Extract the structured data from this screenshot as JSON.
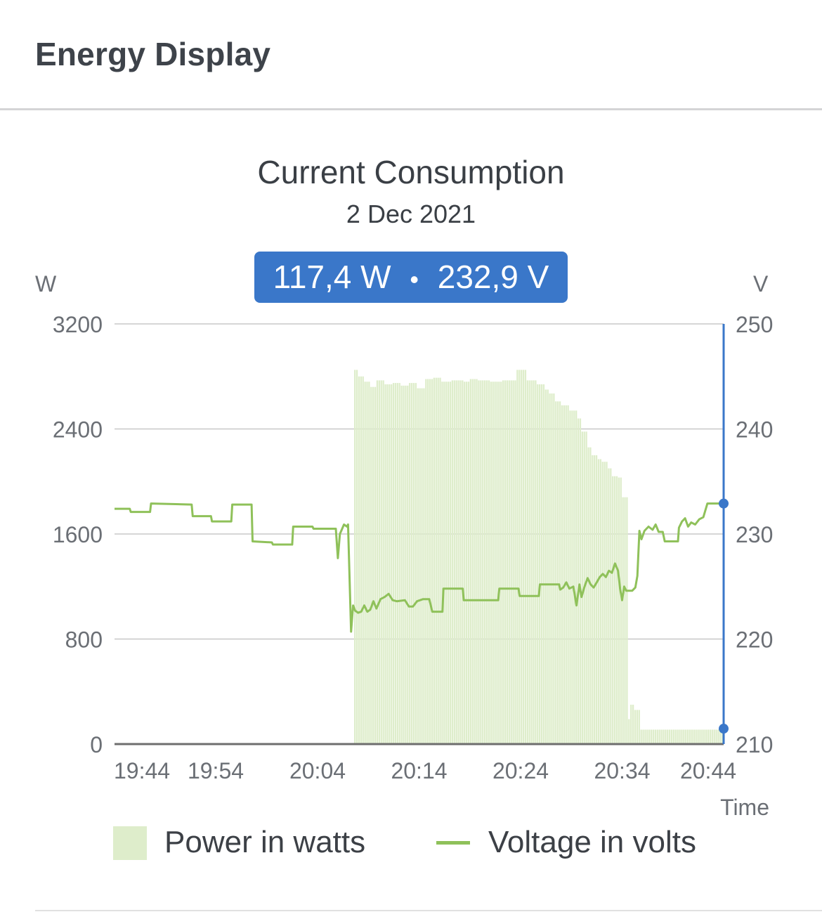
{
  "header": {
    "title": "Energy Display"
  },
  "tooltip": {
    "power": "117,4 W",
    "separator": "•",
    "voltage": "232,9 V"
  },
  "legend": {
    "power": "Power in watts",
    "voltage": "Voltage in volts"
  },
  "colors": {
    "power_fill": "#deedcb",
    "voltage_line": "#8fc15a",
    "cursor": "#3a77c9",
    "grid": "#c8c8c8",
    "axis": "#6e6e6e"
  },
  "chart_data": {
    "type": "bar",
    "title": "Current Consumption",
    "subtitle": "2 Dec 2021",
    "ylabel": "W",
    "y2label": "V",
    "xlabel": "Time",
    "ylim": [
      0,
      3200
    ],
    "y2lim": [
      210,
      250
    ],
    "yticks": [
      "0",
      "800",
      "1600",
      "2400",
      "3200"
    ],
    "y2ticks": [
      "210",
      "220",
      "230",
      "240",
      "250"
    ],
    "xticks": [
      "19:44",
      "19:54",
      "20:04",
      "20:14",
      "20:24",
      "20:34",
      "20:44"
    ],
    "xlim": [
      0,
      60
    ],
    "grid": true,
    "legend_position": "bottom",
    "cursor": {
      "x": 60,
      "power": 117.4,
      "voltage": 232.9
    },
    "series": [
      {
        "name": "Power in watts",
        "type": "bar",
        "points": [
          [
            0,
            0
          ],
          [
            23.4,
            0
          ],
          [
            23.5,
            2850
          ],
          [
            24.0,
            2800
          ],
          [
            24.6,
            2760
          ],
          [
            25.2,
            2720
          ],
          [
            25.8,
            2770
          ],
          [
            26.5,
            2740
          ],
          [
            27.3,
            2750
          ],
          [
            28.2,
            2730
          ],
          [
            29.0,
            2750
          ],
          [
            29.8,
            2710
          ],
          [
            30.6,
            2780
          ],
          [
            31.4,
            2790
          ],
          [
            32.2,
            2760
          ],
          [
            33.2,
            2770
          ],
          [
            34.3,
            2760
          ],
          [
            35.0,
            2780
          ],
          [
            35.8,
            2770
          ],
          [
            37.0,
            2760
          ],
          [
            38.2,
            2770
          ],
          [
            39.5,
            2850
          ],
          [
            40.5,
            2770
          ],
          [
            41.5,
            2740
          ],
          [
            42.3,
            2700
          ],
          [
            42.8,
            2670
          ],
          [
            43.4,
            2610
          ],
          [
            44.0,
            2580
          ],
          [
            44.8,
            2540
          ],
          [
            45.5,
            2480
          ],
          [
            46.0,
            2380
          ],
          [
            46.5,
            2260
          ],
          [
            47.0,
            2200
          ],
          [
            47.5,
            2170
          ],
          [
            48.0,
            2150
          ],
          [
            48.5,
            2100
          ],
          [
            48.9,
            2040
          ],
          [
            49.5,
            2030
          ],
          [
            50.0,
            1880
          ],
          [
            50.5,
            190
          ],
          [
            50.8,
            300
          ],
          [
            51.1,
            260
          ],
          [
            51.7,
            110
          ],
          [
            60,
            110
          ]
        ]
      },
      {
        "name": "Voltage in volts",
        "type": "line",
        "points": [
          [
            0,
            232.4
          ],
          [
            1.5,
            232.4
          ],
          [
            1.6,
            232.1
          ],
          [
            3.5,
            232.1
          ],
          [
            3.6,
            232.9
          ],
          [
            7.6,
            232.8
          ],
          [
            7.7,
            231.7
          ],
          [
            9.5,
            231.7
          ],
          [
            9.6,
            231.2
          ],
          [
            11.5,
            231.2
          ],
          [
            11.6,
            232.8
          ],
          [
            13.5,
            232.8
          ],
          [
            13.6,
            229.3
          ],
          [
            15.5,
            229.2
          ],
          [
            15.6,
            229.0
          ],
          [
            17.5,
            229.0
          ],
          [
            17.6,
            230.7
          ],
          [
            19.5,
            230.7
          ],
          [
            19.6,
            230.5
          ],
          [
            21.8,
            230.5
          ],
          [
            22.0,
            227.7
          ],
          [
            22.2,
            230.0
          ],
          [
            22.6,
            230.9
          ],
          [
            22.9,
            230.7
          ],
          [
            23.0,
            230.9
          ],
          [
            23.3,
            220.7
          ],
          [
            23.5,
            223.2
          ],
          [
            23.7,
            222.7
          ],
          [
            24.0,
            222.5
          ],
          [
            24.3,
            222.6
          ],
          [
            24.6,
            223.2
          ],
          [
            24.9,
            222.6
          ],
          [
            25.2,
            222.8
          ],
          [
            25.5,
            223.6
          ],
          [
            25.8,
            222.9
          ],
          [
            26.2,
            223.8
          ],
          [
            26.6,
            224.0
          ],
          [
            27.0,
            224.3
          ],
          [
            27.4,
            223.7
          ],
          [
            27.8,
            223.6
          ],
          [
            28.6,
            223.7
          ],
          [
            29.0,
            223.1
          ],
          [
            29.4,
            223.1
          ],
          [
            29.8,
            223.6
          ],
          [
            30.4,
            223.8
          ],
          [
            31.0,
            223.8
          ],
          [
            31.3,
            222.6
          ],
          [
            32.3,
            222.6
          ],
          [
            32.4,
            224.8
          ],
          [
            34.3,
            224.8
          ],
          [
            34.4,
            223.7
          ],
          [
            37.8,
            223.7
          ],
          [
            37.9,
            224.8
          ],
          [
            39.8,
            224.8
          ],
          [
            39.9,
            224.1
          ],
          [
            41.8,
            224.1
          ],
          [
            41.9,
            225.2
          ],
          [
            43.8,
            225.2
          ],
          [
            43.9,
            224.7
          ],
          [
            44.2,
            224.9
          ],
          [
            44.5,
            225.4
          ],
          [
            44.8,
            224.8
          ],
          [
            45.2,
            225.0
          ],
          [
            45.5,
            223.2
          ],
          [
            45.8,
            225.2
          ],
          [
            46.0,
            224.0
          ],
          [
            46.3,
            225.0
          ],
          [
            46.6,
            225.8
          ],
          [
            46.9,
            225.2
          ],
          [
            47.2,
            224.9
          ],
          [
            47.5,
            225.4
          ],
          [
            47.8,
            225.9
          ],
          [
            48.1,
            226.2
          ],
          [
            48.4,
            225.9
          ],
          [
            48.7,
            226.5
          ],
          [
            49.0,
            226.3
          ],
          [
            49.3,
            227.2
          ],
          [
            49.6,
            226.5
          ],
          [
            49.8,
            224.8
          ],
          [
            50.0,
            223.7
          ],
          [
            50.2,
            225.0
          ],
          [
            50.4,
            224.6
          ],
          [
            51.0,
            224.6
          ],
          [
            51.3,
            224.9
          ],
          [
            51.5,
            226.0
          ],
          [
            51.7,
            230.3
          ],
          [
            51.9,
            229.5
          ],
          [
            52.2,
            230.3
          ],
          [
            52.6,
            230.7
          ],
          [
            53.0,
            230.4
          ],
          [
            53.3,
            230.9
          ],
          [
            53.6,
            230.2
          ],
          [
            54.0,
            230.2
          ],
          [
            54.2,
            229.3
          ],
          [
            55.5,
            229.3
          ],
          [
            55.6,
            230.6
          ],
          [
            55.9,
            231.2
          ],
          [
            56.2,
            231.5
          ],
          [
            56.5,
            230.7
          ],
          [
            56.8,
            231.1
          ],
          [
            57.2,
            230.9
          ],
          [
            57.6,
            231.4
          ],
          [
            58.0,
            231.6
          ],
          [
            58.4,
            232.9
          ],
          [
            60,
            232.9
          ]
        ]
      }
    ]
  }
}
